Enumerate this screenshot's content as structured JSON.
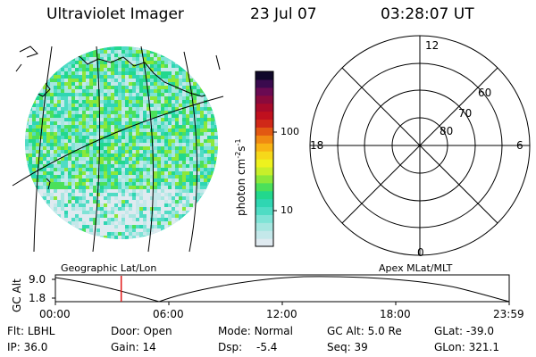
{
  "header": {
    "instrument": "Ultraviolet Imager",
    "date": "23 Jul 07",
    "time": "03:28:07 UT"
  },
  "colorbar": {
    "unit": "photon cm",
    "unit_sup1": "-2",
    "unit_mid": "s",
    "unit_sup2": "-1",
    "tick_100": "100",
    "tick_10": "10",
    "colors": [
      "#dfeaf0",
      "#c4e8ea",
      "#a6e6e0",
      "#7fe3d6",
      "#4fdcc4",
      "#2fd6b2",
      "#22d88d",
      "#4be05a",
      "#8be83a",
      "#c8ef2a",
      "#eef21e",
      "#f6d81a",
      "#f8b414",
      "#f08a12",
      "#e25812",
      "#d02818",
      "#c0101e",
      "#a80a2a",
      "#8a0a3c",
      "#6a0a52",
      "#3a0a4e",
      "#10082a"
    ]
  },
  "polar": {
    "mlt_12": "12",
    "mlt_18": "18",
    "mlt_6": "6",
    "mlt_0": "0",
    "lat_60": "60",
    "lat_70": "70",
    "lat_80": "80"
  },
  "captions": {
    "left": "Geographic Lat/Lon",
    "right": "Apex MLat/MLT"
  },
  "orbit": {
    "ylabel": "GC Alt",
    "ymax": "9.0",
    "ymin": "1.8",
    "ticks": [
      "00:00",
      "06:00",
      "12:00",
      "18:00",
      "23:59"
    ],
    "current_fraction": 0.145
  },
  "status": {
    "flt_label": "Flt:",
    "flt_value": "LBHL",
    "door_label": "Door:",
    "door_value": "Open",
    "mode_label": "Mode:",
    "mode_value": "Normal",
    "gcalt_label": "GC Alt:",
    "gcalt_value": "5.0 Re",
    "glat_label": "GLat:",
    "glat_value": "-39.0",
    "ip_label": "IP:",
    "ip_value": "36.0",
    "gain_label": "Gain:",
    "gain_value": "14",
    "dsp_label": "Dsp:",
    "dsp_value": "-5.4",
    "seq_label": "Seq:",
    "seq_value": "39",
    "glon_label": "GLon:",
    "glon_value": "321.1"
  }
}
